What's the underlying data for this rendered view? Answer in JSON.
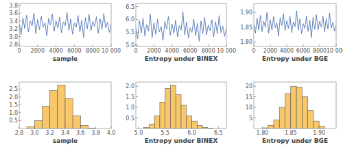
{
  "chart_data": [
    {
      "type": "line",
      "x_label": "sample",
      "color": "#4f74b3",
      "x": [
        0,
        200,
        400,
        600,
        800,
        1000,
        1200,
        1400,
        1600,
        1800,
        2000,
        2200,
        2400,
        2600,
        2800,
        3000,
        3200,
        3400,
        3600,
        3800,
        4000,
        4200,
        4400,
        4600,
        4800,
        5000,
        5200,
        5400,
        5600,
        5800,
        6000,
        6200,
        6400,
        6600,
        6800,
        7000,
        7200,
        7400,
        7600,
        7800,
        8000,
        8200,
        8400,
        8600,
        8800,
        9000,
        9200,
        9400,
        9600,
        9800,
        10000
      ],
      "values": [
        3.32,
        3.05,
        3.48,
        3.21,
        3.55,
        3.12,
        3.4,
        3.27,
        3.6,
        3.08,
        3.44,
        3.18,
        3.52,
        3.25,
        3.36,
        3.02,
        3.47,
        3.3,
        3.58,
        3.14,
        3.41,
        3.22,
        3.5,
        3.1,
        3.38,
        3.28,
        3.62,
        3.16,
        3.45,
        3.06,
        3.35,
        3.24,
        3.54,
        3.12,
        3.42,
        2.98,
        3.49,
        3.2,
        3.57,
        3.15,
        3.39,
        3.26,
        3.51,
        3.09,
        3.46,
        3.19,
        3.59,
        3.23,
        3.37,
        3.11,
        3.33
      ],
      "xlim": [
        0,
        10000
      ],
      "ylim": [
        2.75,
        3.85
      ],
      "xticks": [
        0,
        2000,
        4000,
        6000,
        8000,
        {
          "value": 10000,
          "label": "10 000"
        }
      ],
      "yticks": [
        2.8,
        {
          "value": 3,
          "label": "3.0"
        },
        3.2,
        3.4,
        3.6,
        3.8
      ]
    },
    {
      "type": "line",
      "x_label": "Entropy under BINEX",
      "color": "#4f74b3",
      "x": [
        0,
        200,
        400,
        600,
        800,
        1000,
        1200,
        1400,
        1600,
        1800,
        2000,
        2200,
        2400,
        2600,
        2800,
        3000,
        3200,
        3400,
        3600,
        3800,
        4000,
        4200,
        4400,
        4600,
        4800,
        5000,
        5200,
        5400,
        5600,
        5800,
        6000,
        6200,
        6400,
        6600,
        6800,
        7000,
        7200,
        7400,
        7600,
        7800,
        8000,
        8200,
        8400,
        8600,
        8800,
        9000,
        9200,
        9400,
        9600,
        9800,
        10000
      ],
      "values": [
        5.7,
        5.25,
        5.95,
        5.48,
        6.05,
        5.35,
        5.8,
        5.55,
        6.2,
        5.3,
        5.88,
        5.42,
        6.0,
        5.52,
        5.72,
        5.18,
        5.92,
        5.62,
        6.12,
        5.38,
        5.82,
        5.46,
        5.98,
        5.33,
        5.76,
        5.58,
        6.3,
        5.4,
        5.9,
        5.28,
        5.68,
        5.5,
        6.02,
        5.36,
        5.84,
        5.15,
        5.94,
        5.45,
        6.08,
        5.4,
        5.78,
        5.56,
        5.99,
        5.32,
        5.91,
        5.44,
        6.15,
        5.49,
        5.74,
        5.34,
        5.66
      ],
      "xlim": [
        0,
        10000
      ],
      "ylim": [
        4.95,
        6.62
      ],
      "xticks": [
        0,
        2000,
        4000,
        6000,
        8000,
        {
          "value": 10000,
          "label": "10 000"
        }
      ],
      "yticks": [
        {
          "value": 5,
          "label": "5.0"
        },
        5.5,
        {
          "value": 6,
          "label": "6.0"
        },
        6.5
      ]
    },
    {
      "type": "line",
      "x_label": "Entropy under BGE",
      "color": "#4f74b3",
      "x": [
        0,
        200,
        400,
        600,
        800,
        1000,
        1200,
        1400,
        1600,
        1800,
        2000,
        2200,
        2400,
        2600,
        2800,
        3000,
        3200,
        3400,
        3600,
        3800,
        4000,
        4200,
        4400,
        4600,
        4800,
        5000,
        5200,
        5400,
        5600,
        5800,
        6000,
        6200,
        6400,
        6600,
        6800,
        7000,
        7200,
        7400,
        7600,
        7800,
        8000,
        8200,
        8400,
        8600,
        8800,
        9000,
        9200,
        9400,
        9600,
        9800,
        10000
      ],
      "values": [
        1.86,
        1.83,
        1.88,
        1.84,
        1.89,
        1.835,
        1.87,
        1.85,
        1.9,
        1.83,
        1.875,
        1.84,
        1.885,
        1.848,
        1.865,
        1.82,
        1.882,
        1.855,
        1.895,
        1.838,
        1.872,
        1.845,
        1.886,
        1.832,
        1.868,
        1.852,
        1.905,
        1.84,
        1.878,
        1.828,
        1.862,
        1.846,
        1.888,
        1.836,
        1.874,
        1.815,
        1.884,
        1.843,
        1.892,
        1.84,
        1.87,
        1.85,
        1.887,
        1.834,
        1.879,
        1.844,
        1.898,
        1.847,
        1.866,
        1.837,
        1.858
      ],
      "xlim": [
        0,
        10000
      ],
      "ylim": [
        1.785,
        1.93
      ],
      "xticks": [
        0,
        2000,
        4000,
        6000,
        8000,
        {
          "value": 10000,
          "label": "10 000"
        }
      ],
      "yticks": [
        {
          "value": 1.8,
          "label": "1.80"
        },
        1.85,
        {
          "value": 1.9,
          "label": "1.90"
        }
      ]
    },
    {
      "type": "histogram",
      "x_label": "sample",
      "color": "#f8c76a",
      "bins": [
        2.9,
        3.0,
        3.1,
        3.2,
        3.3,
        3.4,
        3.5,
        3.6,
        3.7,
        3.8
      ],
      "values": [
        0.1,
        0.5,
        1.4,
        2.4,
        2.75,
        1.9,
        0.8,
        0.2,
        0.03
      ],
      "xlim": [
        2.8,
        4.0
      ],
      "ylim": [
        0,
        2.95
      ],
      "xticks": [
        2.8,
        {
          "value": 3,
          "label": "3.0"
        },
        3.2,
        3.4,
        3.6,
        3.8,
        {
          "value": 4,
          "label": "4.0"
        }
      ],
      "yticks": [
        0.5,
        {
          "value": 1,
          "label": "1.0"
        },
        1.5,
        {
          "value": 2,
          "label": "2.0"
        },
        2.5
      ]
    },
    {
      "type": "histogram",
      "x_label": "Entropy under BINEX",
      "color": "#f8c76a",
      "bins": [
        5.1,
        5.2,
        5.3,
        5.4,
        5.5,
        5.6,
        5.7,
        5.8,
        5.9,
        6.0,
        6.1,
        6.2,
        6.3,
        6.4
      ],
      "values": [
        0.05,
        0.2,
        0.6,
        1.25,
        1.9,
        2.05,
        1.6,
        1.1,
        0.6,
        0.35,
        0.15,
        0.05,
        0.02
      ],
      "xlim": [
        4.95,
        6.65
      ],
      "ylim": [
        0,
        2.2
      ],
      "xticks": [
        {
          "value": 5,
          "label": "5.0"
        },
        5.5,
        {
          "value": 6,
          "label": "6.0"
        },
        6.5
      ],
      "yticks": [
        0.5,
        {
          "value": 1,
          "label": "1.0"
        },
        1.5,
        {
          "value": 2,
          "label": "2.0"
        }
      ]
    },
    {
      "type": "histogram",
      "x_label": "Entropy under BGE",
      "color": "#f8c76a",
      "bins": [
        1.8,
        1.81,
        1.82,
        1.83,
        1.84,
        1.85,
        1.86,
        1.87,
        1.88,
        1.89,
        1.9,
        1.91
      ],
      "values": [
        0.3,
        1.5,
        4,
        10,
        16.5,
        20,
        19.5,
        15,
        8.5,
        3.5,
        1
      ],
      "xlim": [
        1.785,
        1.93
      ],
      "ylim": [
        0,
        22
      ],
      "xticks": [
        {
          "value": 1.8,
          "label": "1.80"
        },
        1.85,
        {
          "value": 1.9,
          "label": "1.90"
        }
      ],
      "yticks": [
        5,
        10,
        15,
        20
      ]
    }
  ]
}
